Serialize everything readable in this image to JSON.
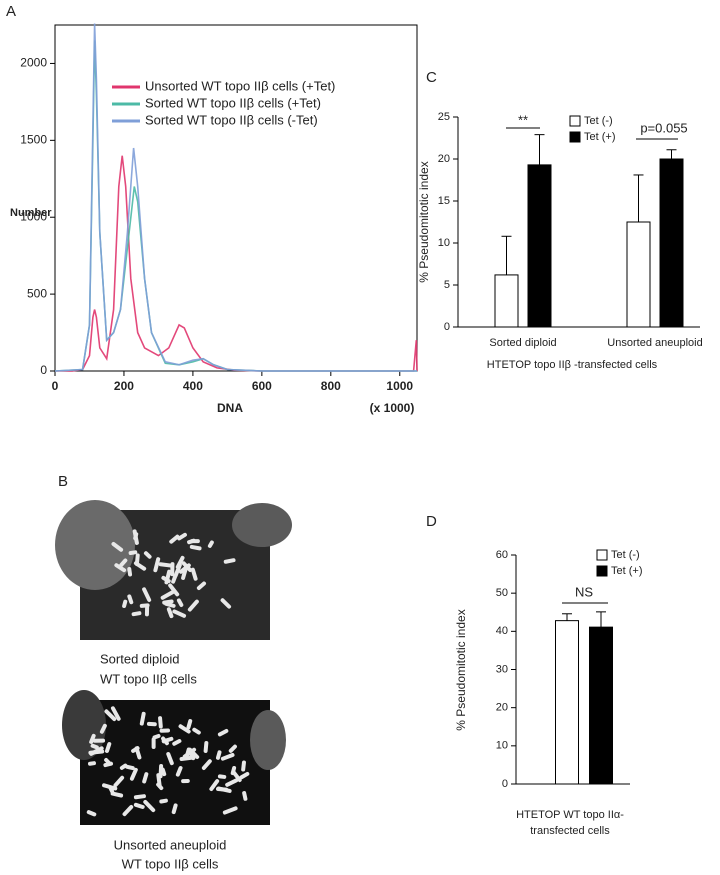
{
  "panel_letters": [
    "A",
    "B",
    "C",
    "D"
  ],
  "images": [
    {
      "caption": [
        "Sorted diploid",
        "WT topo IIβ cells"
      ]
    },
    {
      "caption": [
        "Unsorted aneuploid",
        "WT topo IIβ cells"
      ]
    }
  ],
  "chart_data": [
    {
      "type": "line",
      "xlabel": "DNA",
      "xlabel_note": "(x 1000)",
      "ylabel": "Number",
      "xlim": [
        0,
        1050
      ],
      "xticks": [
        0,
        200,
        400,
        600,
        800,
        1000
      ],
      "ylim": [
        0,
        2250
      ],
      "yticks": [
        0,
        500,
        1000,
        1500,
        2000
      ],
      "grid": false,
      "series": [
        {
          "name": "Unsorted WT topo IIβ cells (+Tet)",
          "color": "#e0356d",
          "x": [
            0,
            50,
            80,
            100,
            110,
            115,
            120,
            130,
            150,
            170,
            185,
            195,
            205,
            220,
            240,
            260,
            300,
            330,
            360,
            375,
            400,
            430,
            470,
            520,
            600,
            800,
            1000,
            1040,
            1048,
            1050
          ],
          "values": [
            0,
            0,
            10,
            100,
            350,
            400,
            350,
            150,
            80,
            400,
            1200,
            1400,
            1200,
            600,
            250,
            150,
            100,
            150,
            300,
            280,
            150,
            60,
            20,
            5,
            0,
            0,
            0,
            0,
            200,
            0
          ]
        },
        {
          "name": "Sorted WT topo IIβ cells (+Tet)",
          "color": "#4cbaa6",
          "x": [
            0,
            80,
            100,
            110,
            115,
            120,
            130,
            150,
            170,
            190,
            210,
            230,
            240,
            260,
            280,
            320,
            360,
            400,
            430,
            460,
            500,
            600,
            1000,
            1050
          ],
          "values": [
            0,
            10,
            300,
            1500,
            2150,
            1800,
            900,
            200,
            250,
            400,
            800,
            1200,
            1100,
            600,
            250,
            50,
            40,
            60,
            80,
            40,
            10,
            0,
            0,
            0
          ]
        },
        {
          "name": "Sorted WT topo IIβ cells (-Tet)",
          "color": "#7f9fd8",
          "x": [
            0,
            80,
            100,
            110,
            115,
            120,
            130,
            150,
            170,
            190,
            210,
            228,
            240,
            260,
            280,
            320,
            360,
            400,
            430,
            460,
            500,
            600,
            1000,
            1050
          ],
          "values": [
            0,
            10,
            300,
            1600,
            2260,
            1900,
            900,
            200,
            250,
            400,
            900,
            1450,
            1200,
            600,
            250,
            60,
            40,
            70,
            80,
            40,
            10,
            0,
            0,
            0
          ]
        }
      ]
    },
    {
      "type": "bar",
      "ylabel": "% Pseudomitotic index",
      "xlabel": [
        "HTETOP  topo IIβ -transfected cells"
      ],
      "categories": [
        "Sorted diploid",
        "Unsorted aneuploid"
      ],
      "ylim": [
        0,
        25
      ],
      "yticks": [
        0,
        5,
        10,
        15,
        20,
        25
      ],
      "grid": false,
      "annotations": [
        "**",
        "p=0.055"
      ],
      "series": [
        {
          "name": "Tet (-)",
          "color": "#ffffff",
          "values": [
            6.2,
            12.5
          ],
          "errors": [
            4.6,
            5.6
          ]
        },
        {
          "name": "Tet (+)",
          "color": "#000000",
          "values": [
            19.3,
            20.0
          ],
          "errors": [
            3.6,
            1.1
          ]
        }
      ]
    },
    {
      "type": "bar",
      "ylabel": "% Pseudomitotic index",
      "xlabel": [
        "HTETOP  WT topo IIα-",
        "transfected cells"
      ],
      "categories": [
        null
      ],
      "ylim": [
        0,
        60
      ],
      "yticks": [
        0,
        10,
        20,
        30,
        40,
        50,
        60
      ],
      "grid": false,
      "annotations": [
        "NS"
      ],
      "series": [
        {
          "name": "Tet (-)",
          "color": "#ffffff",
          "values": [
            42.8
          ],
          "errors": [
            1.8
          ]
        },
        {
          "name": "Tet (+)",
          "color": "#000000",
          "values": [
            41.1
          ],
          "errors": [
            4.0
          ]
        }
      ]
    }
  ]
}
